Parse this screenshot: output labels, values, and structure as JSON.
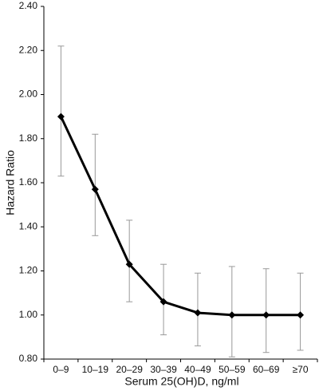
{
  "chart_data": {
    "type": "line",
    "y_label": "Hazard Ratio",
    "x_label": "Serum 25(OH)D, ng/ml",
    "categories": [
      "0–9",
      "10–19",
      "20–29",
      "30–39",
      "40–49",
      "50–59",
      "60–69",
      "≥70"
    ],
    "values": [
      1.9,
      1.57,
      1.23,
      1.06,
      1.01,
      1.0,
      1.0,
      1.0
    ],
    "lower": [
      1.63,
      1.36,
      1.06,
      0.91,
      0.86,
      0.81,
      0.83,
      0.84
    ],
    "upper": [
      2.22,
      1.82,
      1.43,
      1.23,
      1.19,
      1.22,
      1.21,
      1.19
    ],
    "color": "#000000",
    "error_color": "#999999",
    "ylim": [
      0.8,
      2.4
    ],
    "yticks": [
      {
        "value": 0.8,
        "label": "0.80"
      },
      {
        "value": 1.0,
        "label": "1.00"
      },
      {
        "value": 1.2,
        "label": "1.20"
      },
      {
        "value": 1.4,
        "label": "1.40"
      },
      {
        "value": 1.6,
        "label": "1.60"
      },
      {
        "value": 1.8,
        "label": "1.80"
      },
      {
        "value": 2.0,
        "label": "2.00"
      },
      {
        "value": 2.2,
        "label": "2.20"
      },
      {
        "value": 2.4,
        "label": "2.40"
      }
    ],
    "grid": false
  }
}
